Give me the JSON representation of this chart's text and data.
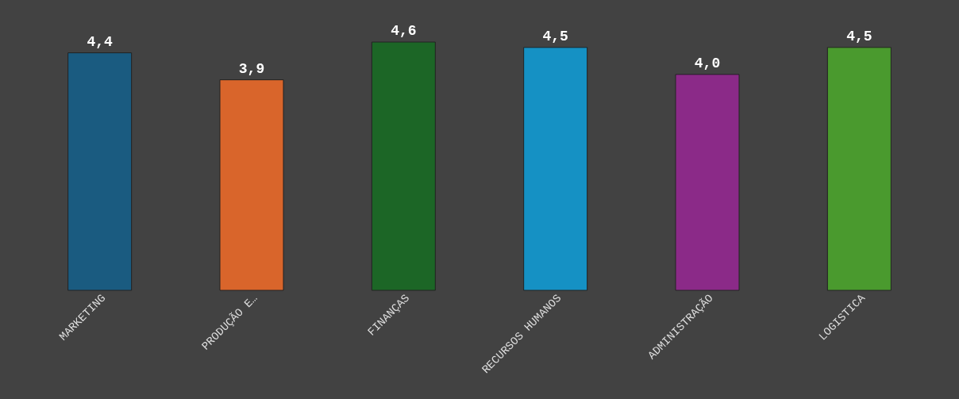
{
  "chart_data": {
    "type": "bar",
    "categories": [
      "MARKETING",
      "PRODUÇÃO E…",
      "FINANÇAS",
      "RECURSOS HUMANOS",
      "ADMINISTRAÇÃO",
      "LOGISTICA"
    ],
    "values": [
      4.4,
      3.9,
      4.6,
      4.5,
      4.0,
      4.5
    ],
    "colors": [
      "#1a5b80",
      "#d9652b",
      "#1c6626",
      "#1591c4",
      "#8b2a88",
      "#4a9a2e"
    ],
    "value_labels": [
      "4,4",
      "3,9",
      "4,6",
      "4,5",
      "4,0",
      "4,5"
    ],
    "grid": false,
    "legend": false
  }
}
